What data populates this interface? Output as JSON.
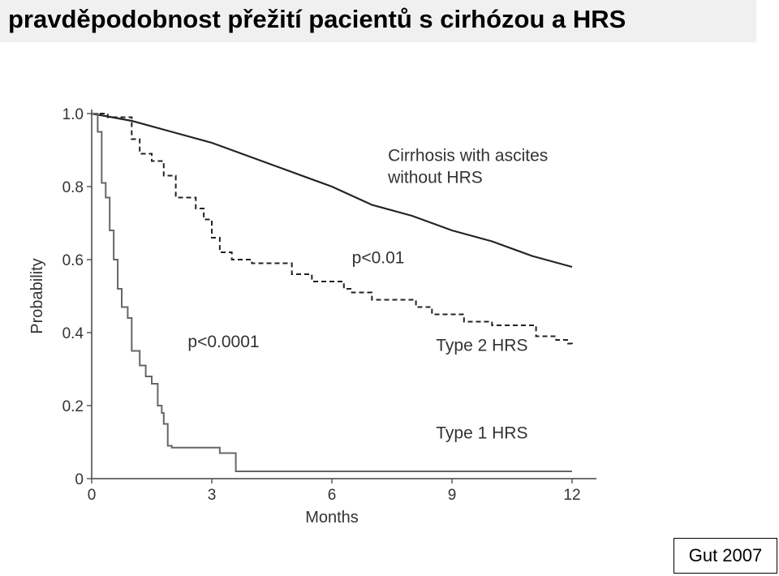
{
  "page": {
    "title": "pravděpodobnost přežití pacientů s cirhózou a HRS",
    "citation": "Gut 2007"
  },
  "chart_data": {
    "type": "line",
    "title": "",
    "xlabel": "Months",
    "ylabel": "Probability",
    "xlim": [
      0,
      12
    ],
    "ylim": [
      0,
      1.0
    ],
    "x_ticks": [
      0,
      3,
      6,
      9,
      12
    ],
    "y_ticks": [
      0,
      0.2,
      0.4,
      0.6,
      0.8,
      1.0
    ],
    "y_tick_labels": [
      "0",
      "0.2",
      "0.4",
      "0.6",
      "0.8",
      "1.0"
    ],
    "grid": false,
    "series": [
      {
        "name": "Cirrhosis with ascites without HRS",
        "style": "solid",
        "color": "#222222",
        "step": false,
        "x": [
          0,
          1,
          2,
          3,
          4,
          5,
          6,
          7,
          8,
          9,
          10,
          11,
          12
        ],
        "y": [
          1.0,
          0.98,
          0.95,
          0.92,
          0.88,
          0.84,
          0.8,
          0.75,
          0.72,
          0.68,
          0.65,
          0.61,
          0.58
        ]
      },
      {
        "name": "Type 2 HRS",
        "style": "dashed",
        "color": "#222222",
        "step": true,
        "x": [
          0,
          0.4,
          0.9,
          1.0,
          1.2,
          1.5,
          1.8,
          2.1,
          2.6,
          2.8,
          3.0,
          3.2,
          3.5,
          4.0,
          4.9,
          5.0,
          5.5,
          6.3,
          6.5,
          7.0,
          8.1,
          8.5,
          9.3,
          10.0,
          11.1,
          11.6,
          11.9,
          12.0
        ],
        "y": [
          1.0,
          0.99,
          0.99,
          0.93,
          0.89,
          0.87,
          0.83,
          0.77,
          0.74,
          0.71,
          0.66,
          0.62,
          0.6,
          0.59,
          0.59,
          0.56,
          0.54,
          0.52,
          0.51,
          0.49,
          0.47,
          0.45,
          0.43,
          0.42,
          0.39,
          0.38,
          0.37,
          0.36
        ]
      },
      {
        "name": "Type 1 HRS",
        "style": "solid",
        "color": "#666666",
        "step": true,
        "x": [
          0,
          0.15,
          0.25,
          0.35,
          0.45,
          0.55,
          0.65,
          0.75,
          0.9,
          1.0,
          1.2,
          1.35,
          1.5,
          1.65,
          1.75,
          1.8,
          1.9,
          2.0,
          2.5,
          3.0,
          3.2,
          3.6,
          3.7,
          12.0
        ],
        "y": [
          1.0,
          0.95,
          0.81,
          0.77,
          0.68,
          0.6,
          0.52,
          0.47,
          0.44,
          0.35,
          0.31,
          0.28,
          0.26,
          0.2,
          0.18,
          0.15,
          0.09,
          0.085,
          0.085,
          0.085,
          0.07,
          0.02,
          0.02,
          0.02
        ]
      }
    ],
    "annotations": [
      {
        "text": "Cirrhosis with ascites",
        "x": 7.4,
        "y": 0.87
      },
      {
        "text": "without HRS",
        "x": 7.4,
        "y": 0.81
      },
      {
        "text": "p<0.01",
        "x": 6.5,
        "y": 0.59
      },
      {
        "text": "Type 2 HRS",
        "x": 8.6,
        "y": 0.35
      },
      {
        "text": "p<0.0001",
        "x": 2.4,
        "y": 0.36
      },
      {
        "text": "Type 1 HRS",
        "x": 8.6,
        "y": 0.11
      }
    ]
  }
}
